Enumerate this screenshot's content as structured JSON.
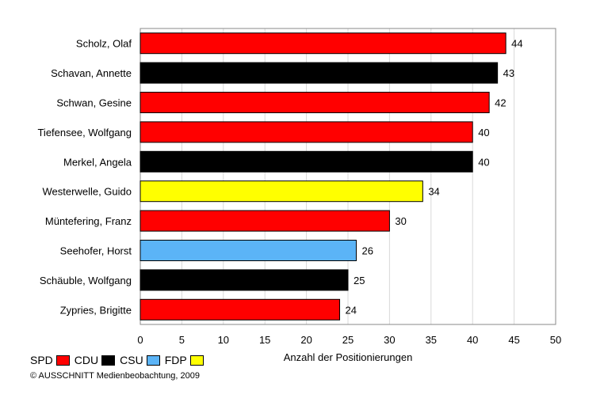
{
  "chart_data": {
    "type": "bar",
    "orientation": "horizontal",
    "categories": [
      "Scholz, Olaf",
      "Schavan, Annette",
      "Schwan, Gesine",
      "Tiefensee, Wolfgang",
      "Merkel, Angela",
      "Westerwelle, Guido",
      "Müntefering, Franz",
      "Seehofer, Horst",
      "Schäuble, Wolfgang",
      "Zypries, Brigitte"
    ],
    "values": [
      44,
      43,
      42,
      40,
      40,
      34,
      30,
      26,
      25,
      24
    ],
    "parties": [
      "SPD",
      "CDU",
      "SPD",
      "SPD",
      "CDU",
      "FDP",
      "SPD",
      "CSU",
      "CDU",
      "SPD"
    ],
    "title": "",
    "xlabel": "Anzahl der Positionierungen",
    "ylabel": "",
    "xlim": [
      0,
      50
    ],
    "xticks": [
      0,
      5,
      10,
      15,
      20,
      25,
      30,
      35,
      40,
      45,
      50
    ],
    "grid": "vertical",
    "data_labels": true
  },
  "party_colors": {
    "SPD": "#ff0000",
    "CDU": "#000000",
    "CSU": "#5bb4f7",
    "FDP": "#ffff00"
  },
  "legend": {
    "placement": "bottom-left",
    "items": [
      {
        "label": "SPD",
        "party": "SPD"
      },
      {
        "label": "CDU",
        "party": "CDU"
      },
      {
        "label": "CSU",
        "party": "CSU"
      },
      {
        "label": "FDP",
        "party": "FDP"
      }
    ]
  },
  "copyright": "© AUSSCHNITT Medienbeobachtung, 2009"
}
